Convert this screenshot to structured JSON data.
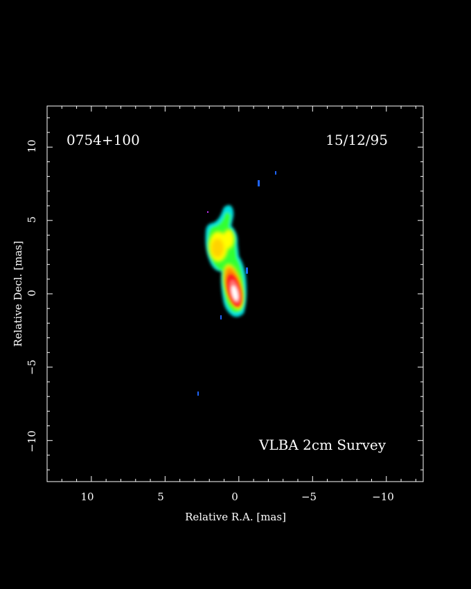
{
  "plot": {
    "source_name": "0754+100",
    "date": "15/12/95",
    "survey_label": "VLBA 2cm Survey",
    "xlabel": "Relative R.A. [mas]",
    "ylabel": "Relative Decl. [mas]",
    "xlim": [
      13,
      -12.5
    ],
    "ylim": [
      -12.8,
      12.8
    ],
    "x_ticks": [
      "10",
      "5",
      "0",
      "−5",
      "−10"
    ],
    "y_ticks": [
      "−10",
      "−5",
      "0",
      "5",
      "10"
    ],
    "colors": {
      "background": "#000000",
      "frame": "#ffffff",
      "peak": "#ffffff",
      "high": "#ff1a1a",
      "mid_high": "#ff8c00",
      "mid": "#ffff00",
      "low_mid": "#33ff33",
      "low": "#00e0e0",
      "faint": "#1e64ff"
    }
  }
}
